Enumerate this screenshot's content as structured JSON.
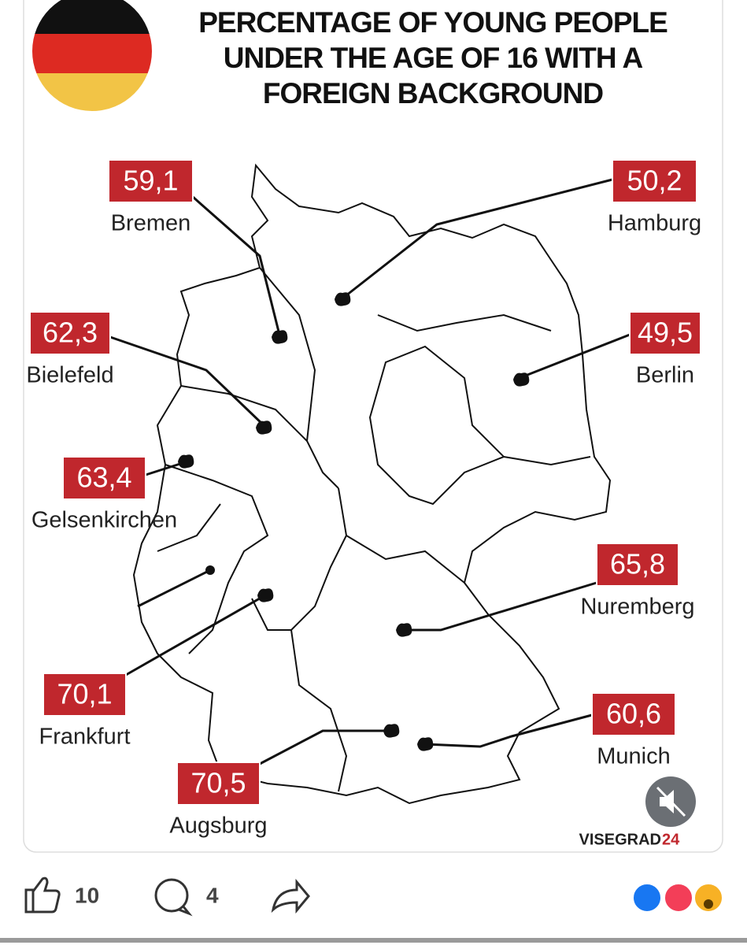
{
  "header": {
    "title": "PERCENTAGE OF YOUNG PEOPLE UNDER THE AGE OF 16 WITH A FOREIGN BACKGROUND"
  },
  "cities": [
    {
      "name": "Bremen",
      "value_label": "59,1"
    },
    {
      "name": "Hamburg",
      "value_label": "50,2"
    },
    {
      "name": "Bielefeld",
      "value_label": "62,3"
    },
    {
      "name": "Berlin",
      "value_label": "49,5"
    },
    {
      "name": "Gelsenkirchen",
      "value_label": "63,4"
    },
    {
      "name": "Nuremberg",
      "value_label": "65,8"
    },
    {
      "name": "Frankfurt",
      "value_label": "70,1"
    },
    {
      "name": "Munich",
      "value_label": "60,6"
    },
    {
      "name": "Augsburg",
      "value_label": "70,5"
    }
  ],
  "brand": {
    "name": "VISEGRAD",
    "suffix": "24"
  },
  "actions": {
    "likes": 10,
    "comments": 4
  }
}
